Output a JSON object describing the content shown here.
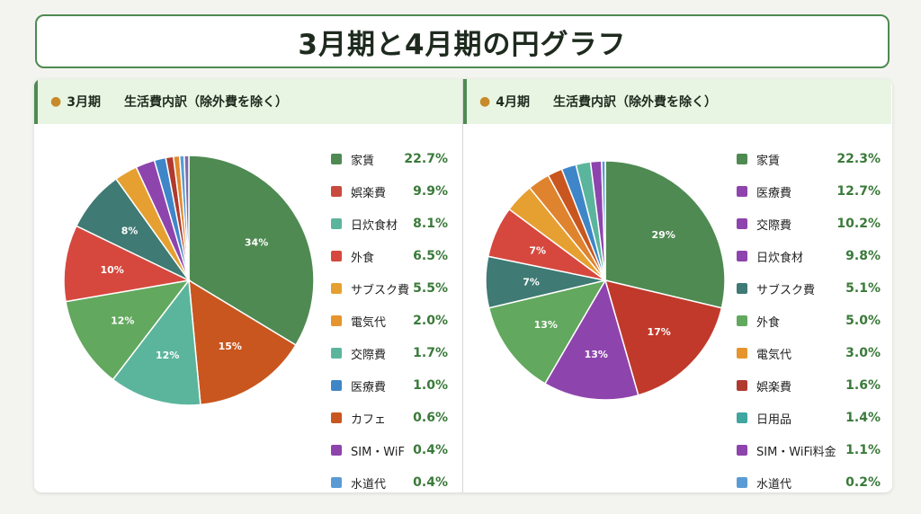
{
  "title": "3月期と4月期の円グラフ",
  "chart_data": [
    {
      "type": "pie",
      "period": "3月期",
      "title": "生活費内訳（除外費を除く）",
      "pie": [
        {
          "value": 34,
          "label": "34%",
          "color": "#4f8a52"
        },
        {
          "value": 15,
          "label": "15%",
          "color": "#c9561f"
        },
        {
          "value": 12,
          "label": "12%",
          "color": "#5bb59c"
        },
        {
          "value": 12,
          "label": "12%",
          "color": "#62a85e"
        },
        {
          "value": 10,
          "label": "10%",
          "color": "#d6483e"
        },
        {
          "value": 8,
          "label": "8%",
          "color": "#3f7a74"
        },
        {
          "value": 3,
          "label": "",
          "color": "#e6a031"
        },
        {
          "value": 2.5,
          "label": "",
          "color": "#8e44ad"
        },
        {
          "value": 1.5,
          "label": "",
          "color": "#3f86c8"
        },
        {
          "value": 1,
          "label": "",
          "color": "#b03a2e"
        },
        {
          "value": 0.8,
          "label": "",
          "color": "#e08a2e"
        },
        {
          "value": 0.6,
          "label": "",
          "color": "#5b9bd5"
        },
        {
          "value": 0.6,
          "label": "",
          "color": "#7d6cab"
        }
      ],
      "legend": [
        {
          "name": "家賃",
          "value": "22.7%",
          "color": "#4f8a52"
        },
        {
          "name": "娯楽費",
          "value": "9.9%",
          "color": "#c94a3e"
        },
        {
          "name": "日炊食材",
          "value": "8.1%",
          "color": "#5bb59c"
        },
        {
          "name": "外食",
          "value": "6.5%",
          "color": "#d6483e"
        },
        {
          "name": "サブスク費",
          "value": "5.5%",
          "color": "#e6a031"
        },
        {
          "name": "電気代",
          "value": "2.0%",
          "color": "#e6942e"
        },
        {
          "name": "交際費",
          "value": "1.7%",
          "color": "#5bb59c"
        },
        {
          "name": "医療費",
          "value": "1.0%",
          "color": "#3f86c8"
        },
        {
          "name": "カフェ",
          "value": "0.6%",
          "color": "#c9561f"
        },
        {
          "name": "SIM・WiF",
          "value": "0.4%",
          "color": "#8e44ad"
        },
        {
          "name": "水道代",
          "value": "0.4%",
          "color": "#5b9bd5"
        }
      ]
    },
    {
      "type": "pie",
      "period": "4月期",
      "title": "生活費内訳（除外費を除く）",
      "pie": [
        {
          "value": 29,
          "label": "29%",
          "color": "#4f8a52"
        },
        {
          "value": 17,
          "label": "17%",
          "color": "#c0392b"
        },
        {
          "value": 13,
          "label": "13%",
          "color": "#8e44ad"
        },
        {
          "value": 13,
          "label": "13%",
          "color": "#62a85e"
        },
        {
          "value": 7,
          "label": "7%",
          "color": "#3f7a74"
        },
        {
          "value": 7,
          "label": "7%",
          "color": "#d6483e"
        },
        {
          "value": 4,
          "label": "",
          "color": "#e6a031"
        },
        {
          "value": 3,
          "label": "",
          "color": "#e0832e"
        },
        {
          "value": 2,
          "label": "",
          "color": "#c9561f"
        },
        {
          "value": 2,
          "label": "",
          "color": "#3f86c8"
        },
        {
          "value": 2,
          "label": "",
          "color": "#5bb59c"
        },
        {
          "value": 1.5,
          "label": "",
          "color": "#8e44ad"
        },
        {
          "value": 0.5,
          "label": "",
          "color": "#5b9bd5"
        }
      ],
      "legend": [
        {
          "name": "家賃",
          "value": "22.3%",
          "color": "#4f8a52"
        },
        {
          "name": "医療費",
          "value": "12.7%",
          "color": "#8e44ad"
        },
        {
          "name": "交際費",
          "value": "10.2%",
          "color": "#8e44ad"
        },
        {
          "name": "日炊食材",
          "value": "9.8%",
          "color": "#8e44ad"
        },
        {
          "name": "サブスク費",
          "value": "5.1%",
          "color": "#3f7a74"
        },
        {
          "name": "外食",
          "value": "5.0%",
          "color": "#62a85e"
        },
        {
          "name": "電気代",
          "value": "3.0%",
          "color": "#e6942e"
        },
        {
          "name": "娯楽費",
          "value": "1.6%",
          "color": "#b03a2e"
        },
        {
          "name": "日用品",
          "value": "1.4%",
          "color": "#3fa6a0"
        },
        {
          "name": "SIM・WiFi料金",
          "value": "1.1%",
          "color": "#8e44ad"
        },
        {
          "name": "水道代",
          "value": "0.2%",
          "color": "#5b9bd5"
        }
      ]
    }
  ]
}
